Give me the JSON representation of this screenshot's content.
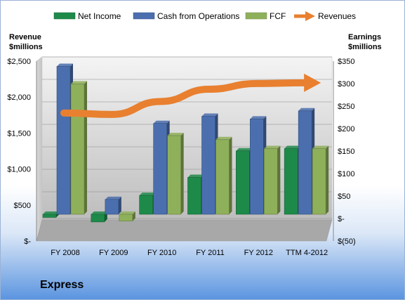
{
  "company": "Express",
  "colors": {
    "net_income": "#1e8a4a",
    "cash_from_operations": "#4b6fae",
    "fcf": "#8fb05a",
    "revenues": "#e88030"
  },
  "chart_data": {
    "type": "bar",
    "categories": [
      "FY 2008",
      "FY 2009",
      "FY 2010",
      "FY 2011",
      "FY 2012",
      "TTM 4-2012"
    ],
    "left_axis": {
      "title_line1": "Revenue",
      "title_line2": "$millions",
      "ticks": [
        "$2,500",
        "$2,000",
        "$1,500",
        "$1,000",
        "$500",
        "$-"
      ],
      "range": [
        0,
        2500
      ]
    },
    "right_axis": {
      "title_line1": "Earnings",
      "title_line2": "$millions",
      "ticks": [
        "$350",
        "$300",
        "$250",
        "$200",
        "$150",
        "$100",
        "$50",
        "$-",
        "$(50)"
      ],
      "range": [
        -50,
        350
      ]
    },
    "series": [
      {
        "name": "Net Income",
        "type": "bar",
        "axis": "right",
        "values": [
          -7,
          -17,
          42,
          82,
          141,
          146
        ]
      },
      {
        "name": "Cash from Operations",
        "type": "bar",
        "axis": "right",
        "values": [
          329,
          33,
          202,
          218,
          212,
          230
        ]
      },
      {
        "name": "FCF",
        "type": "bar",
        "axis": "right",
        "values": [
          290,
          -15,
          175,
          166,
          146,
          146
        ]
      },
      {
        "name": "Revenues",
        "type": "line",
        "axis": "left",
        "values": [
          1740,
          1720,
          1900,
          2070,
          2150,
          2160
        ]
      }
    ],
    "grid": true,
    "legend_position": "top"
  }
}
